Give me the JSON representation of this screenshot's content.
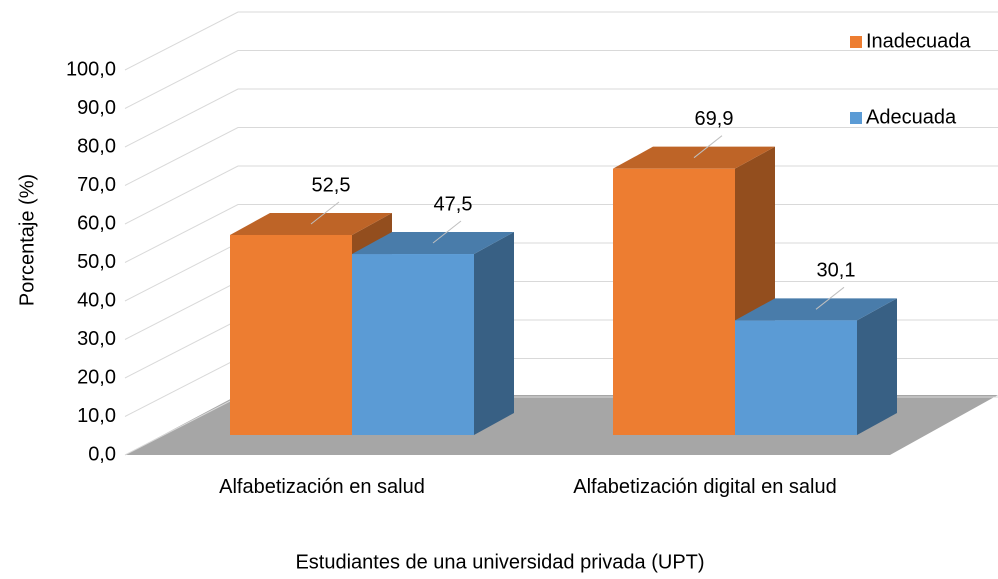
{
  "chart_data": {
    "type": "bar3d",
    "x_label": "Estudiantes de una universidad privada (UPT)",
    "y_label": "Porcentaje (%)",
    "categories": [
      "Alfabetización en salud",
      "Alfabetización digital en salud"
    ],
    "series": [
      {
        "name": "Inadecuada",
        "color": "#ed7d31",
        "values": [
          52.5,
          69.9
        ],
        "value_labels": [
          "52,5",
          "69,9"
        ]
      },
      {
        "name": "Adecuada",
        "color": "#5b9bd5",
        "values": [
          47.5,
          30.1
        ],
        "value_labels": [
          "47,5",
          "30,1"
        ]
      }
    ],
    "ylim": [
      0,
      100
    ],
    "yticks": [
      {
        "value": 0,
        "label": "0,0"
      },
      {
        "value": 10,
        "label": "10,0"
      },
      {
        "value": 20,
        "label": "20,0"
      },
      {
        "value": 30,
        "label": "30,0"
      },
      {
        "value": 40,
        "label": "40,0"
      },
      {
        "value": 50,
        "label": "50,0"
      },
      {
        "value": 60,
        "label": "60,0"
      },
      {
        "value": 70,
        "label": "70,0"
      },
      {
        "value": 80,
        "label": "80,0"
      },
      {
        "value": 90,
        "label": "90,0"
      },
      {
        "value": 100,
        "label": "100,0"
      }
    ],
    "grid": true
  }
}
